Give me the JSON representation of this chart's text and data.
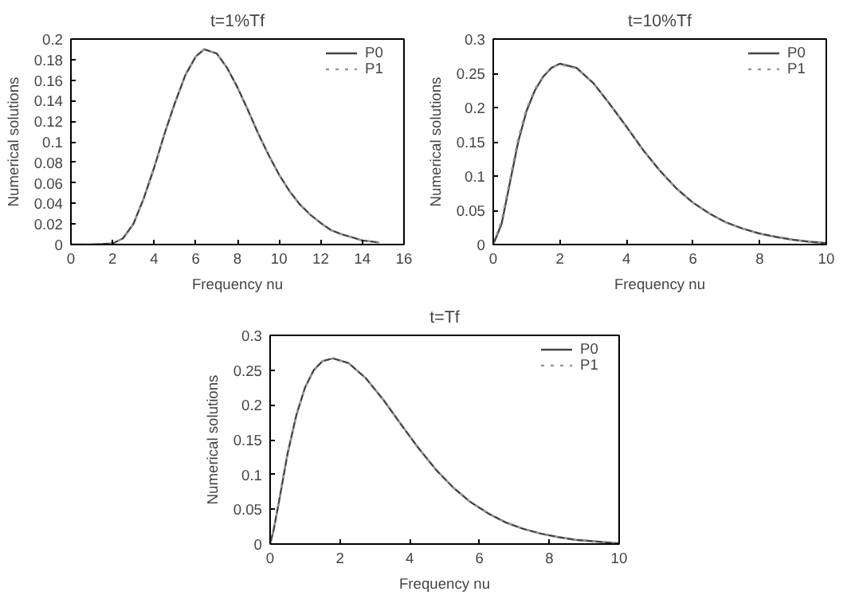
{
  "chart_data": [
    {
      "type": "line",
      "title": "t=1%Tf",
      "xlabel": "Frequency nu",
      "ylabel": "Numerical solutions",
      "xlim": [
        0,
        16
      ],
      "ylim": [
        0,
        0.2
      ],
      "xticks": [
        0,
        2,
        4,
        6,
        8,
        10,
        12,
        14,
        16
      ],
      "yticks": [
        0,
        0.02,
        0.04,
        0.06,
        0.08,
        0.1,
        0.12,
        0.14,
        0.16,
        0.18,
        0.2
      ],
      "grid": false,
      "legend": "top right",
      "x": [
        0,
        1,
        2,
        2.5,
        3,
        3.5,
        4,
        4.5,
        5,
        5.5,
        6,
        6.4,
        7,
        7.5,
        8,
        8.5,
        9,
        9.5,
        10,
        10.5,
        11,
        11.5,
        12,
        12.5,
        13,
        13.5,
        14,
        14.8
      ],
      "series": [
        {
          "name": "P0",
          "color": "#444444",
          "line_style": "solid",
          "values": [
            0,
            0,
            0.001,
            0.006,
            0.02,
            0.045,
            0.075,
            0.108,
            0.138,
            0.165,
            0.183,
            0.19,
            0.186,
            0.172,
            0.153,
            0.131,
            0.108,
            0.087,
            0.068,
            0.052,
            0.039,
            0.029,
            0.021,
            0.014,
            0.01,
            0.007,
            0.004,
            0.002
          ]
        },
        {
          "name": "P1",
          "color": "#999999",
          "line_style": "dotted",
          "values": [
            0,
            0,
            0.001,
            0.006,
            0.02,
            0.045,
            0.075,
            0.108,
            0.138,
            0.165,
            0.183,
            0.19,
            0.186,
            0.172,
            0.153,
            0.131,
            0.108,
            0.087,
            0.068,
            0.052,
            0.039,
            0.029,
            0.021,
            0.014,
            0.01,
            0.007,
            0.004,
            0.002
          ]
        }
      ]
    },
    {
      "type": "line",
      "title": "t=10%Tf",
      "xlabel": "Frequency nu",
      "ylabel": "Numerical solutions",
      "xlim": [
        0,
        10
      ],
      "ylim": [
        0,
        0.3
      ],
      "xticks": [
        0,
        2,
        4,
        6,
        8,
        10
      ],
      "yticks": [
        0,
        0.05,
        0.1,
        0.15,
        0.2,
        0.25,
        0.3
      ],
      "grid": false,
      "legend": "top right",
      "x": [
        0,
        0.25,
        0.5,
        0.75,
        1,
        1.25,
        1.5,
        1.75,
        2,
        2.5,
        3,
        3.5,
        4,
        4.5,
        5,
        5.5,
        6,
        6.5,
        7,
        7.5,
        8,
        8.5,
        9,
        9.5,
        10
      ],
      "series": [
        {
          "name": "P0",
          "color": "#444444",
          "line_style": "solid",
          "values": [
            0,
            0.03,
            0.09,
            0.15,
            0.195,
            0.225,
            0.245,
            0.258,
            0.264,
            0.258,
            0.236,
            0.205,
            0.172,
            0.138,
            0.108,
            0.082,
            0.061,
            0.045,
            0.032,
            0.023,
            0.016,
            0.011,
            0.007,
            0.004,
            0.002
          ]
        },
        {
          "name": "P1",
          "color": "#999999",
          "line_style": "dotted",
          "values": [
            0,
            0.035,
            0.095,
            0.155,
            0.198,
            0.227,
            0.246,
            0.258,
            0.263,
            0.257,
            0.236,
            0.205,
            0.172,
            0.138,
            0.108,
            0.082,
            0.061,
            0.045,
            0.032,
            0.023,
            0.016,
            0.011,
            0.007,
            0.004,
            0.002
          ]
        }
      ]
    },
    {
      "type": "line",
      "title": "t=Tf",
      "xlabel": "Frequency nu",
      "ylabel": "Numerical solutions",
      "xlim": [
        0,
        10
      ],
      "ylim": [
        0,
        0.3
      ],
      "xticks": [
        0,
        2,
        4,
        6,
        8,
        10
      ],
      "yticks": [
        0,
        0.05,
        0.1,
        0.15,
        0.2,
        0.25,
        0.3
      ],
      "grid": false,
      "legend": "top right",
      "x": [
        0,
        0.1,
        0.25,
        0.5,
        0.75,
        1,
        1.25,
        1.5,
        1.8,
        2.25,
        2.75,
        3.25,
        3.75,
        4.25,
        4.75,
        5.25,
        5.75,
        6.25,
        6.75,
        7.25,
        7.75,
        8.25,
        8.75,
        9.25,
        10
      ],
      "series": [
        {
          "name": "P0",
          "color": "#444444",
          "line_style": "solid",
          "values": [
            0,
            0.02,
            0.06,
            0.13,
            0.185,
            0.225,
            0.25,
            0.263,
            0.267,
            0.26,
            0.238,
            0.207,
            0.172,
            0.138,
            0.107,
            0.081,
            0.06,
            0.044,
            0.031,
            0.022,
            0.015,
            0.01,
            0.006,
            0.004,
            0.001
          ]
        },
        {
          "name": "P1",
          "color": "#999999",
          "line_style": "dotted",
          "values": [
            0,
            0.02,
            0.06,
            0.13,
            0.185,
            0.225,
            0.25,
            0.263,
            0.267,
            0.26,
            0.238,
            0.207,
            0.172,
            0.138,
            0.107,
            0.081,
            0.06,
            0.044,
            0.031,
            0.022,
            0.015,
            0.01,
            0.006,
            0.004,
            0.001
          ]
        }
      ]
    }
  ]
}
